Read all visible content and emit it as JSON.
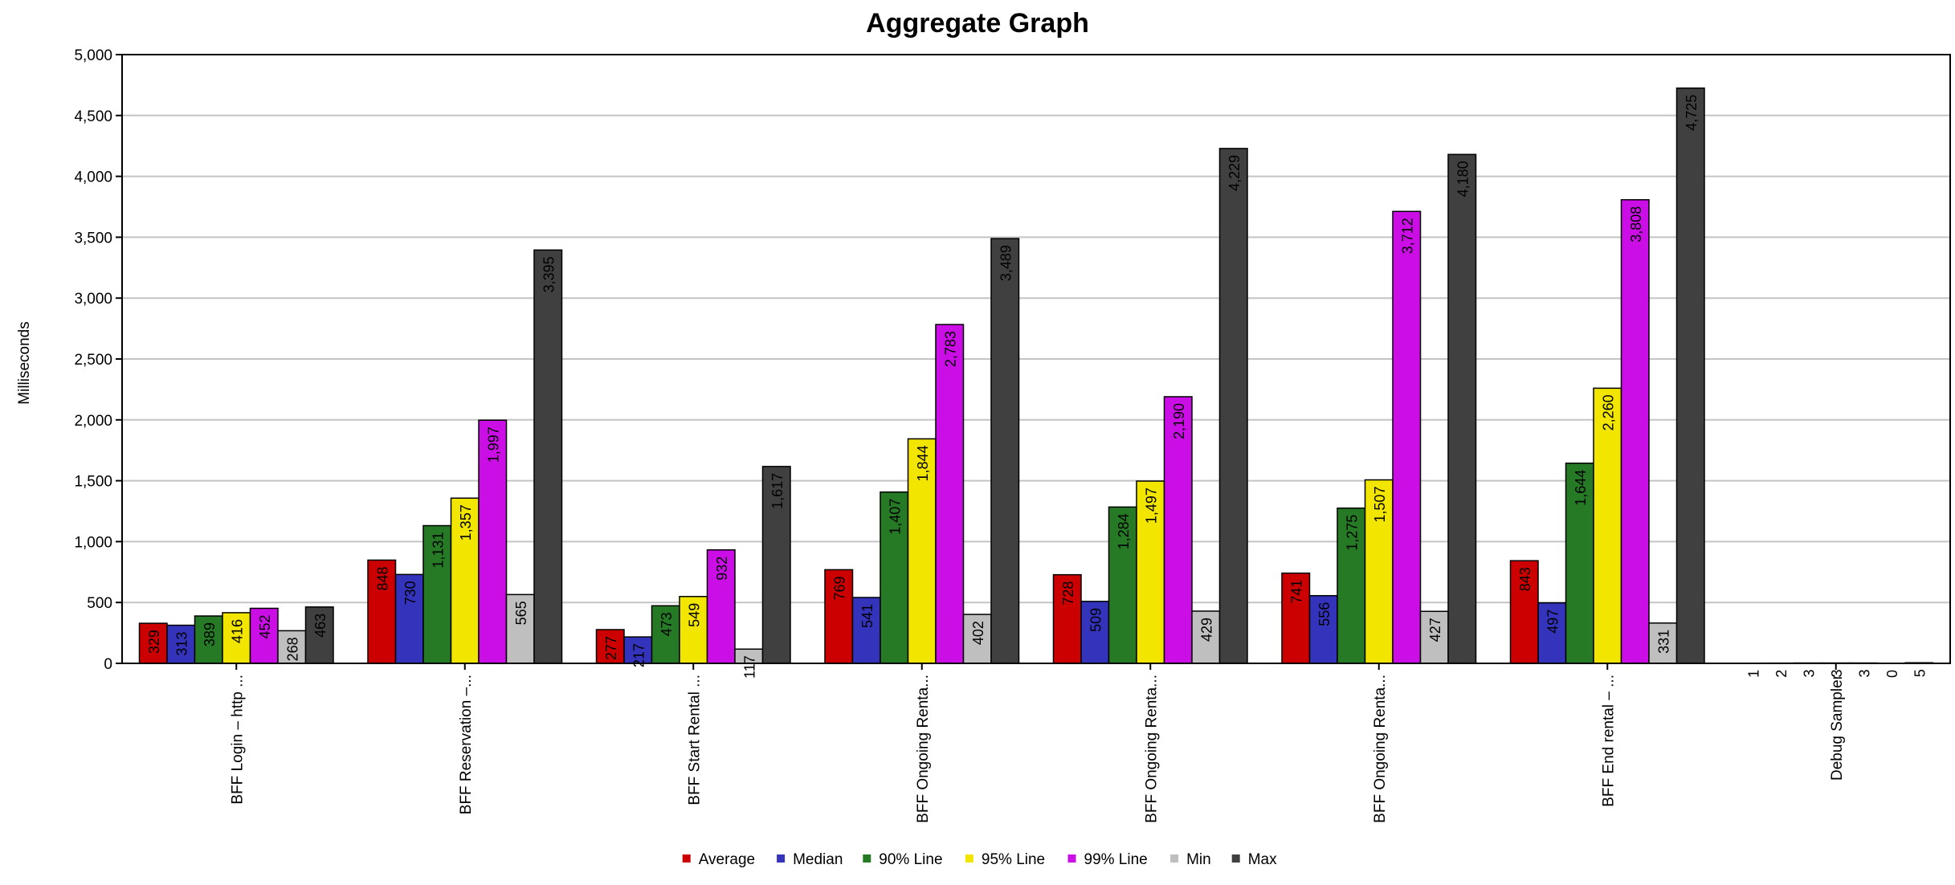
{
  "chart_data": {
    "type": "bar",
    "title": "Aggregate Graph",
    "xlabel": "",
    "ylabel": "Milliseconds",
    "ylim": [
      0,
      5000
    ],
    "yticks": [
      0,
      500,
      1000,
      1500,
      2000,
      2500,
      3000,
      3500,
      4000,
      4500,
      5000
    ],
    "ytick_labels": [
      "0",
      "500",
      "1,000",
      "1,500",
      "2,000",
      "2,500",
      "3,000",
      "3,500",
      "4,000",
      "4,500",
      "5,000"
    ],
    "grid": true,
    "legend_position": "bottom",
    "categories": [
      "BFF Login – http ...",
      "BFF Reservation –...",
      "BFF Start Rental ...",
      "BFF Ongoing Renta...",
      "BFF Ongoing Renta...",
      "BFF Ongoing Renta...",
      "BFF End rental – ...",
      "Debug Sampler"
    ],
    "series": [
      {
        "name": "Average",
        "color": "#cc0000",
        "values": [
          329,
          848,
          277,
          769,
          728,
          741,
          843,
          1
        ],
        "labels": [
          "329",
          "848",
          "277",
          "769",
          "728",
          "741",
          "843",
          "1"
        ]
      },
      {
        "name": "Median",
        "color": "#3333bb",
        "values": [
          313,
          730,
          217,
          541,
          509,
          556,
          497,
          2
        ],
        "labels": [
          "313",
          "730",
          "217",
          "541",
          "509",
          "556",
          "497",
          "2"
        ]
      },
      {
        "name": "90% Line",
        "color": "#267a26",
        "values": [
          389,
          1131,
          473,
          1407,
          1284,
          1275,
          1644,
          3
        ],
        "labels": [
          "389",
          "1,131",
          "473",
          "1,407",
          "1,284",
          "1,275",
          "1,644",
          "3"
        ]
      },
      {
        "name": "95% Line",
        "color": "#f2e600",
        "values": [
          416,
          1357,
          549,
          1844,
          1497,
          1507,
          2260,
          3
        ],
        "labels": [
          "416",
          "1,357",
          "549",
          "1,844",
          "1,497",
          "1,507",
          "2,260",
          "3"
        ]
      },
      {
        "name": "99% Line",
        "color": "#cc0ee6",
        "values": [
          452,
          1997,
          932,
          2783,
          2190,
          3712,
          3808,
          3
        ],
        "labels": [
          "452",
          "1,997",
          "932",
          "2,783",
          "2,190",
          "3,712",
          "3,808",
          "3"
        ]
      },
      {
        "name": "Min",
        "color": "#bfbfbf",
        "values": [
          268,
          565,
          117,
          402,
          429,
          427,
          331,
          0
        ],
        "labels": [
          "268",
          "565",
          "117",
          "402",
          "429",
          "427",
          "331",
          "0"
        ]
      },
      {
        "name": "Max",
        "color": "#404040",
        "values": [
          463,
          3395,
          1617,
          3489,
          4229,
          4180,
          4725,
          5
        ],
        "labels": [
          "463",
          "3,395",
          "1,617",
          "3,489",
          "4,229",
          "4,180",
          "4,725",
          "5"
        ]
      }
    ]
  }
}
